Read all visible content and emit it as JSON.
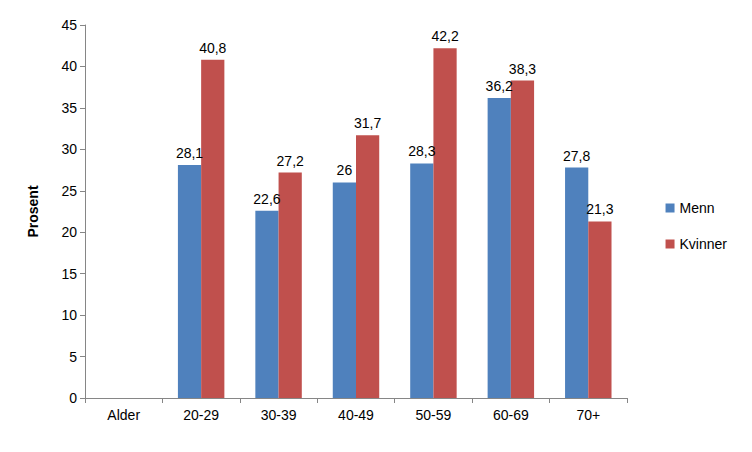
{
  "chart_data": {
    "type": "bar",
    "y_label": "Prosent",
    "categories": [
      "Alder",
      "20-29",
      "30-39",
      "40-49",
      "50-59",
      "60-69",
      "70+"
    ],
    "series": [
      {
        "name": "Menn",
        "color": "#4f81bd",
        "values": [
          null,
          28.1,
          22.6,
          26,
          28.3,
          36.2,
          27.8
        ],
        "value_labels": [
          null,
          "28,1",
          "22,6",
          "26",
          "28,3",
          "36,2",
          "27,8"
        ]
      },
      {
        "name": "Kvinner",
        "color": "#c0504d",
        "values": [
          null,
          40.8,
          27.2,
          31.7,
          42.2,
          38.3,
          21.3
        ],
        "value_labels": [
          null,
          "40,8",
          "27,2",
          "31,7",
          "42,2",
          "38,3",
          "21,3"
        ]
      }
    ],
    "ylim": [
      0,
      45
    ],
    "yticks": [
      0,
      5,
      10,
      15,
      20,
      25,
      30,
      35,
      40,
      45
    ],
    "grid": false,
    "legend": "right",
    "data_labels": true
  }
}
